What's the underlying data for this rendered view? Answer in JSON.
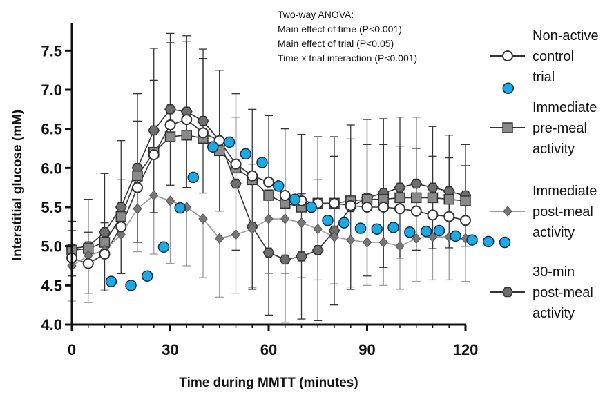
{
  "chart_data": {
    "type": "line",
    "xlabel": "Time during MMTT (minutes)",
    "ylabel": "Interstitial glucose (mM)",
    "xlim": [
      0,
      120
    ],
    "ylim": [
      4.0,
      7.75
    ],
    "x_ticks": [
      "0",
      "30",
      "60",
      "90",
      "120"
    ],
    "y_ticks": [
      "4.0",
      "4.5",
      "5.0",
      "5.5",
      "6.0",
      "6.5",
      "7.0",
      "7.5"
    ],
    "grid": false,
    "legend_position": "right",
    "annotation": [
      "Two-way ANOVA:",
      "Main effect of time (P<0.001)",
      "Main effect of trial (P<0.05)",
      "Time x trial interaction (P<0.001)"
    ],
    "x": [
      0,
      5,
      10,
      15,
      20,
      25,
      30,
      35,
      40,
      45,
      50,
      55,
      60,
      65,
      70,
      75,
      80,
      85,
      90,
      95,
      100,
      105,
      110,
      115,
      120
    ],
    "series": [
      {
        "name": "Non-active control trial",
        "legend_lines": [
          "Non-active",
          "control",
          "trial"
        ],
        "marker": "circle-open",
        "color": "#333333",
        "values": [
          4.85,
          4.78,
          4.9,
          5.25,
          5.75,
          6.17,
          6.55,
          6.62,
          6.45,
          6.35,
          6.05,
          5.9,
          5.82,
          5.65,
          5.58,
          5.55,
          5.55,
          5.52,
          5.5,
          5.5,
          5.48,
          5.45,
          5.4,
          5.38,
          5.33
        ],
        "error": [
          0.35,
          0.4,
          0.4,
          0.6,
          0.85,
          0.95,
          1.05,
          1.0,
          0.95,
          0.9,
          0.9,
          0.85,
          0.85,
          0.85,
          0.85,
          0.85,
          0.85,
          0.85,
          0.8,
          0.8,
          0.8,
          0.8,
          0.75,
          0.75,
          0.7
        ]
      },
      {
        "name": "Immediate pre-meal activity",
        "legend_lines": [
          "Immediate",
          "pre-meal",
          "activity"
        ],
        "marker": "square",
        "color": "#808080",
        "values": [
          4.95,
          4.97,
          5.05,
          5.38,
          5.9,
          6.2,
          6.4,
          6.42,
          6.38,
          6.22,
          6.0,
          5.85,
          5.65,
          5.55,
          5.5,
          5.55,
          5.55,
          5.58,
          5.6,
          5.6,
          5.62,
          5.62,
          5.62,
          5.6,
          5.58
        ]
      },
      {
        "name": "Immediate post-meal activity",
        "legend_lines": [
          "Immediate",
          "post-meal",
          "activity"
        ],
        "marker": "diamond",
        "color": "#777777",
        "values": [
          4.75,
          4.88,
          4.95,
          5.15,
          5.48,
          5.65,
          5.58,
          5.5,
          5.35,
          5.1,
          5.15,
          5.22,
          5.35,
          5.35,
          5.3,
          5.22,
          5.12,
          5.08,
          5.05,
          5.05,
          5.0,
          5.1,
          5.12,
          5.12,
          5.1
        ],
        "error": [
          0.45,
          0.6,
          0.5,
          0.5,
          0.55,
          0.75,
          0.8,
          0.75,
          0.75,
          0.75,
          0.75,
          0.75,
          0.7,
          0.7,
          0.7,
          0.65,
          0.6,
          0.6,
          0.55,
          0.55,
          0.55,
          0.55,
          0.55,
          0.55,
          0.55
        ]
      },
      {
        "name": "30-min post-meal activity",
        "legend_lines": [
          "30-min",
          "post-meal",
          "activity"
        ],
        "marker": "hexagon",
        "color": "#555555",
        "values": [
          4.97,
          5.0,
          5.18,
          5.5,
          6.0,
          6.48,
          6.75,
          6.72,
          6.6,
          6.35,
          5.8,
          5.25,
          4.92,
          4.83,
          4.87,
          4.95,
          5.2,
          5.5,
          5.62,
          5.68,
          5.75,
          5.8,
          5.75,
          5.7,
          5.65
        ],
        "error": [
          0.35,
          0.6,
          0.75,
          0.85,
          0.95,
          1.05,
          0.97,
          0.97,
          0.92,
          0.9,
          0.85,
          0.8,
          0.8,
          0.8,
          0.8,
          0.9,
          0.95,
          1.05,
          1.0,
          0.95,
          0.9,
          0.85,
          0.78,
          0.72,
          0.65
        ]
      }
    ],
    "overlay_dots": {
      "color": "#1da9e3",
      "points": [
        [
          12,
          4.55
        ],
        [
          18,
          4.5
        ],
        [
          23,
          4.62
        ],
        [
          28,
          4.99
        ],
        [
          33,
          5.49
        ],
        [
          37,
          5.88
        ],
        [
          43,
          6.27
        ],
        [
          48,
          6.33
        ],
        [
          53,
          6.18
        ],
        [
          58,
          6.07
        ],
        [
          63,
          5.77
        ],
        [
          68,
          5.6
        ],
        [
          73,
          5.5
        ],
        [
          78,
          5.33
        ],
        [
          83,
          5.3
        ],
        [
          88,
          5.23
        ],
        [
          93,
          5.22
        ],
        [
          98,
          5.24
        ],
        [
          103,
          5.18
        ],
        [
          108,
          5.19
        ],
        [
          112,
          5.2
        ],
        [
          117,
          5.13
        ],
        [
          122,
          5.08
        ],
        [
          127,
          5.06
        ],
        [
          132,
          5.05
        ]
      ],
      "legend_dot": [
        133,
        7.02
      ]
    }
  }
}
